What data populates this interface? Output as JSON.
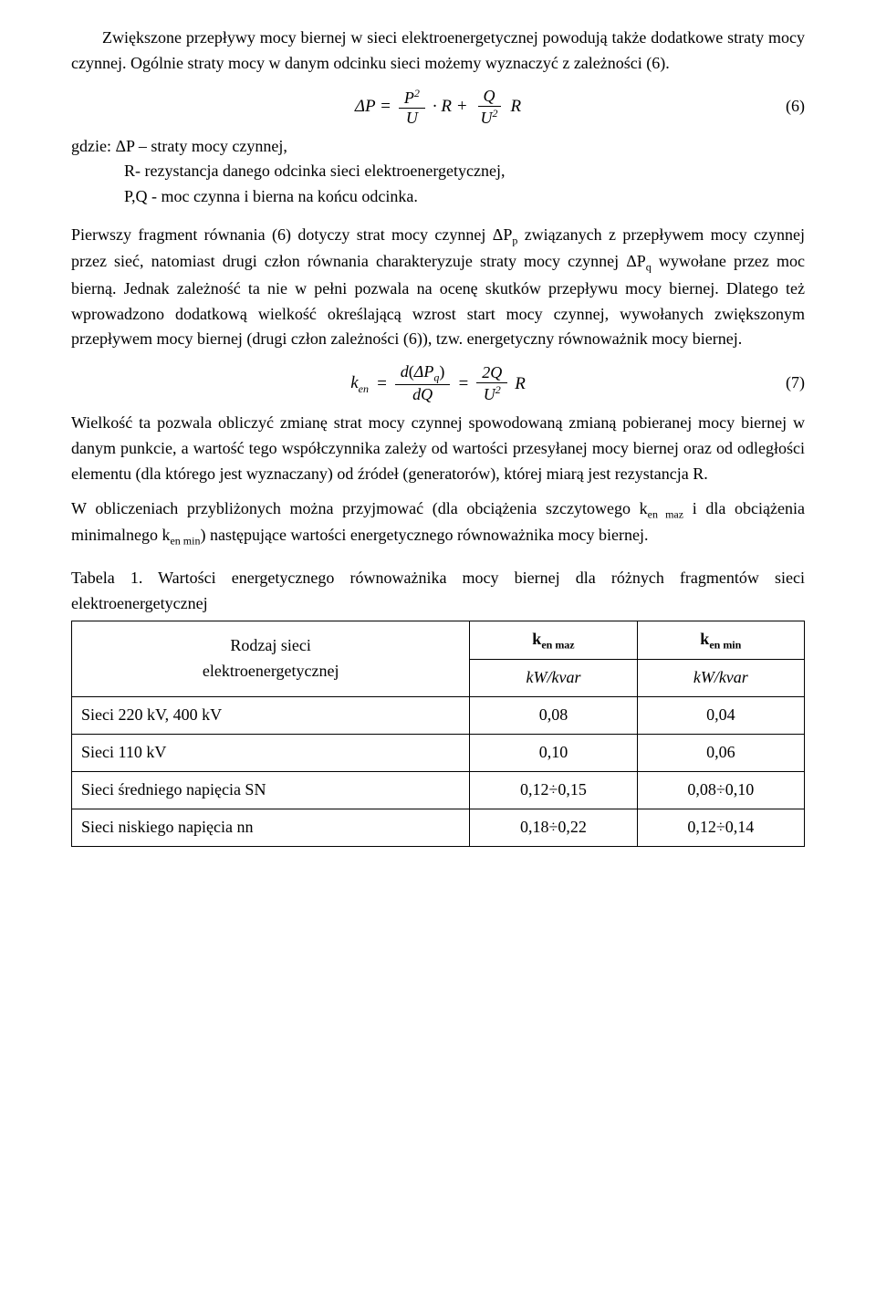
{
  "para1": "Zwiększone przepływy mocy biernej w sieci elektroenergetycznej  powodują także dodatkowe straty mocy czynnej.  Ogólnie straty mocy w danym odcinku sieci możemy wyznaczyć z zależności  (6).",
  "eq6": {
    "lhs": "ΔP =",
    "term1_num": "P",
    "term1_num_sup": "2",
    "term1_den": "U",
    "mid1": "· R +",
    "term2_num": "Q",
    "term2_den": "U",
    "term2_den_sup": "2",
    "tail": "R",
    "number": "(6)"
  },
  "where": {
    "l1": "gdzie: ΔP – straty mocy czynnej,",
    "l2": "R- rezystancja  danego odcinka  sieci elektroenergetycznej,",
    "l3": "P,Q -  moc czynna i bierna na końcu odcinka."
  },
  "para2_a": "Pierwszy fragment równania (6) dotyczy strat mocy czynnej ΔP",
  "para2_sub1": "p",
  "para2_b": " związanych z przepływem mocy czynnej przez sieć, natomiast drugi człon równania charakteryzuje straty mocy czynnej ΔP",
  "para2_sub2": "q",
  "para2_c": " wywołane przez moc bierną.  Jednak zależność ta nie w pełni pozwala na ocenę   skutków przepływu mocy biernej. Dlatego też wprowadzono dodatkową wielkość określającą wzrost start mocy czynnej, wywołanych zwiększonym przepływem mocy biernej (drugi człon zależności (6)), tzw. energetyczny równoważnik mocy biernej.",
  "eq7": {
    "k": "k",
    "k_sub": "en",
    "eq1": " =",
    "f1_num_a": "d",
    "f1_num_b": "ΔP",
    "f1_num_sub": "q",
    "f1_den": "dQ",
    "eq2": "=",
    "f2_num": "2Q",
    "f2_den": "U",
    "f2_den_sup": "2",
    "tail": "R",
    "number": "(7)"
  },
  "para3": "Wielkość ta pozwala obliczyć zmianę strat mocy czynnej spowodowaną zmianą pobieranej mocy biernej w danym punkcie, a wartość tego współczynnika zależy od wartości przesyłanej mocy biernej oraz od odległości elementu (dla którego jest wyznaczany) od źródeł (generatorów), której miarą jest rezystancja R.",
  "para4_a": "W obliczeniach przybliżonych można przyjmować (dla obciążenia szczytowego k",
  "para4_sub1": "en maz",
  "para4_b": " i dla obciążenia minimalnego k",
  "para4_sub2": "en min",
  "para4_c": ") następujące wartości energetycznego równoważnika mocy biernej.",
  "table": {
    "caption": "Tabela 1. Wartości energetycznego równoważnika mocy biernej dla różnych fragmentów sieci elektroenergetycznej",
    "row_header_l1": "Rodzaj sieci",
    "row_header_l2": "elektroenergetycznej",
    "col1_h_a": "k",
    "col1_h_b": "en maz",
    "col2_h_a": "k",
    "col2_h_b": "en min",
    "unit": "kW/kvar",
    "rows": [
      {
        "label": "Sieci 220 kV, 400 kV",
        "v1": "0,08",
        "v2": "0,04"
      },
      {
        "label": "Sieci 110 kV",
        "v1": "0,10",
        "v2": "0,06"
      },
      {
        "label": "Sieci średniego napięcia SN",
        "v1": "0,12÷0,15",
        "v2": "0,08÷0,10"
      },
      {
        "label": "Sieci niskiego napięcia nn",
        "v1": "0,18÷0,22",
        "v2": "0,12÷0,14"
      }
    ]
  }
}
